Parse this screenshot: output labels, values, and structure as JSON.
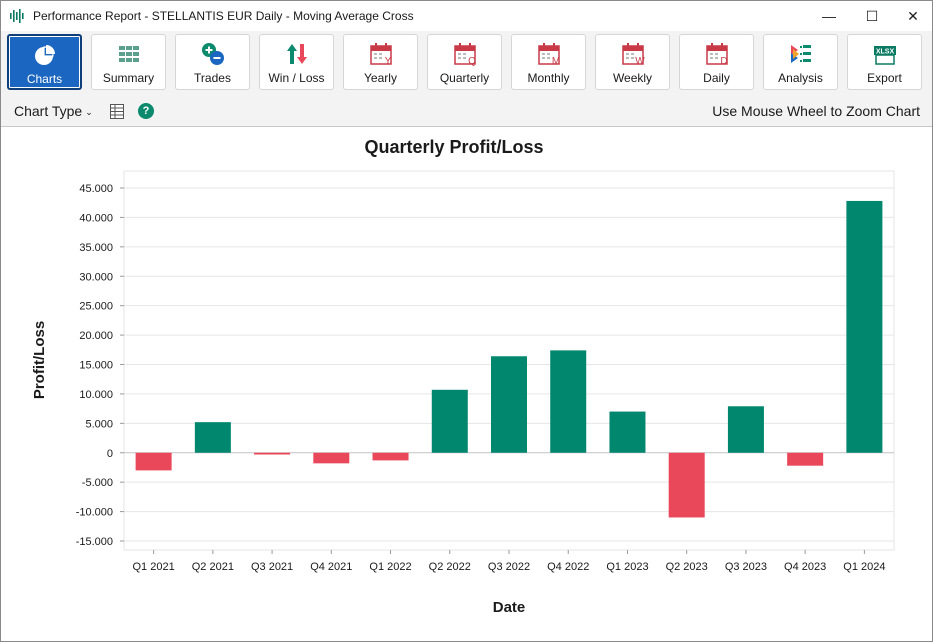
{
  "window": {
    "title": "Performance Report - STELLANTIS EUR Daily - Moving Average Cross",
    "controls": {
      "minimize": "—",
      "maximize": "☐",
      "close": "✕"
    }
  },
  "toolbar": {
    "buttons": [
      {
        "label": "Charts",
        "icon": "pie-chart-icon",
        "active": true
      },
      {
        "label": "Summary",
        "icon": "summary-grid-icon"
      },
      {
        "label": "Trades",
        "icon": "plus-minus-icon"
      },
      {
        "label": "Win / Loss",
        "icon": "up-down-arrows-icon"
      },
      {
        "label": "Yearly",
        "icon": "calendar-y-icon",
        "badge": "Y"
      },
      {
        "label": "Quarterly",
        "icon": "calendar-q-icon",
        "badge": "Q"
      },
      {
        "label": "Monthly",
        "icon": "calendar-m-icon",
        "badge": "M"
      },
      {
        "label": "Weekly",
        "icon": "calendar-w-icon",
        "badge": "W"
      },
      {
        "label": "Daily",
        "icon": "calendar-d-icon",
        "badge": "D"
      },
      {
        "label": "Analysis",
        "icon": "analysis-icon"
      },
      {
        "label": "Export",
        "icon": "xlsx-export-icon",
        "badge": "XLSX"
      }
    ]
  },
  "subbar": {
    "chart_type_label": "Chart Type",
    "help_glyph": "?",
    "zoom_hint": "Use Mouse Wheel to Zoom Chart"
  },
  "colors": {
    "positive": "#00876e",
    "negative": "#e8485a",
    "active_button": "#1a66c0",
    "grid": "#e6e6e6"
  },
  "chart_data": {
    "type": "bar",
    "title": "Quarterly Profit/Loss",
    "xlabel": "Date",
    "ylabel": "Profit/Loss",
    "categories": [
      "Q1 2021",
      "Q2 2021",
      "Q3 2021",
      "Q4 2021",
      "Q1 2022",
      "Q2 2022",
      "Q3 2022",
      "Q4 2022",
      "Q1 2023",
      "Q2 2023",
      "Q3 2023",
      "Q4 2023",
      "Q1 2024"
    ],
    "values": [
      -3000,
      5200,
      -300,
      -1800,
      -1300,
      10700,
      16400,
      17400,
      7000,
      -11000,
      7900,
      -2200,
      42800
    ],
    "ylim": [
      -15000,
      45000
    ],
    "yticks": [
      45000,
      40000,
      35000,
      30000,
      25000,
      20000,
      15000,
      10000,
      5000,
      0,
      -5000,
      -10000,
      -15000
    ],
    "ytick_labels": [
      "45.000",
      "40.000",
      "35.000",
      "30.000",
      "25.000",
      "20.000",
      "15.000",
      "10.000",
      "5.000",
      "0",
      "-5.000",
      "-10.000",
      "-15.000"
    ],
    "grid": true,
    "legend": "none"
  }
}
